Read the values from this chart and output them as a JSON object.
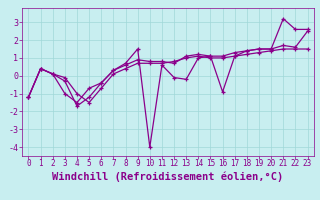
{
  "bg_color": "#c8eef0",
  "line_color": "#8b008b",
  "grid_color": "#a0d8d8",
  "xlabel": "Windchill (Refroidissement éolien,°C)",
  "xlim": [
    -0.5,
    23.5
  ],
  "ylim": [
    -4.5,
    3.8
  ],
  "yticks": [
    -4,
    -3,
    -2,
    -1,
    0,
    1,
    2,
    3
  ],
  "xticks": [
    0,
    1,
    2,
    3,
    4,
    5,
    6,
    7,
    8,
    9,
    10,
    11,
    12,
    13,
    14,
    15,
    16,
    17,
    18,
    19,
    20,
    21,
    22,
    23
  ],
  "series": [
    {
      "x": [
        0,
        1,
        2,
        3,
        4,
        5,
        6,
        7,
        8,
        9,
        10,
        11,
        12,
        13,
        14,
        15,
        16,
        17,
        18,
        19,
        20,
        21,
        22,
        23
      ],
      "y": [
        -1.2,
        0.4,
        0.1,
        -0.1,
        -1.0,
        -1.5,
        -0.7,
        0.1,
        0.4,
        0.7,
        0.7,
        0.7,
        0.8,
        1.0,
        1.1,
        1.0,
        1.0,
        1.1,
        1.2,
        1.3,
        1.4,
        1.5,
        1.5,
        1.5
      ]
    },
    {
      "x": [
        0,
        1,
        2,
        3,
        4,
        5,
        6,
        7,
        8,
        9,
        10,
        11,
        12,
        13,
        14,
        15,
        16,
        17,
        18,
        19,
        20,
        21,
        22,
        23
      ],
      "y": [
        -1.2,
        0.4,
        0.1,
        -0.3,
        -1.7,
        -1.2,
        -0.4,
        0.3,
        0.7,
        1.5,
        -4.0,
        0.6,
        -0.1,
        -0.2,
        1.0,
        1.1,
        -0.9,
        1.1,
        1.4,
        1.5,
        1.5,
        3.2,
        2.6,
        2.6
      ]
    },
    {
      "x": [
        0,
        1,
        2,
        3,
        4,
        5,
        6,
        7,
        8,
        9,
        10,
        11,
        12,
        13,
        14,
        15,
        16,
        17,
        18,
        19,
        20,
        21,
        22,
        23
      ],
      "y": [
        -1.2,
        0.4,
        0.1,
        -1.0,
        -1.5,
        -0.7,
        -0.4,
        0.3,
        0.6,
        0.9,
        0.8,
        0.8,
        0.7,
        1.1,
        1.2,
        1.1,
        1.1,
        1.3,
        1.4,
        1.5,
        1.5,
        1.7,
        1.6,
        2.5
      ]
    }
  ],
  "tick_labelsize": 5.5,
  "xlabel_fontsize": 7.5,
  "marker": "+",
  "markersize": 3.5,
  "linewidth": 0.9
}
